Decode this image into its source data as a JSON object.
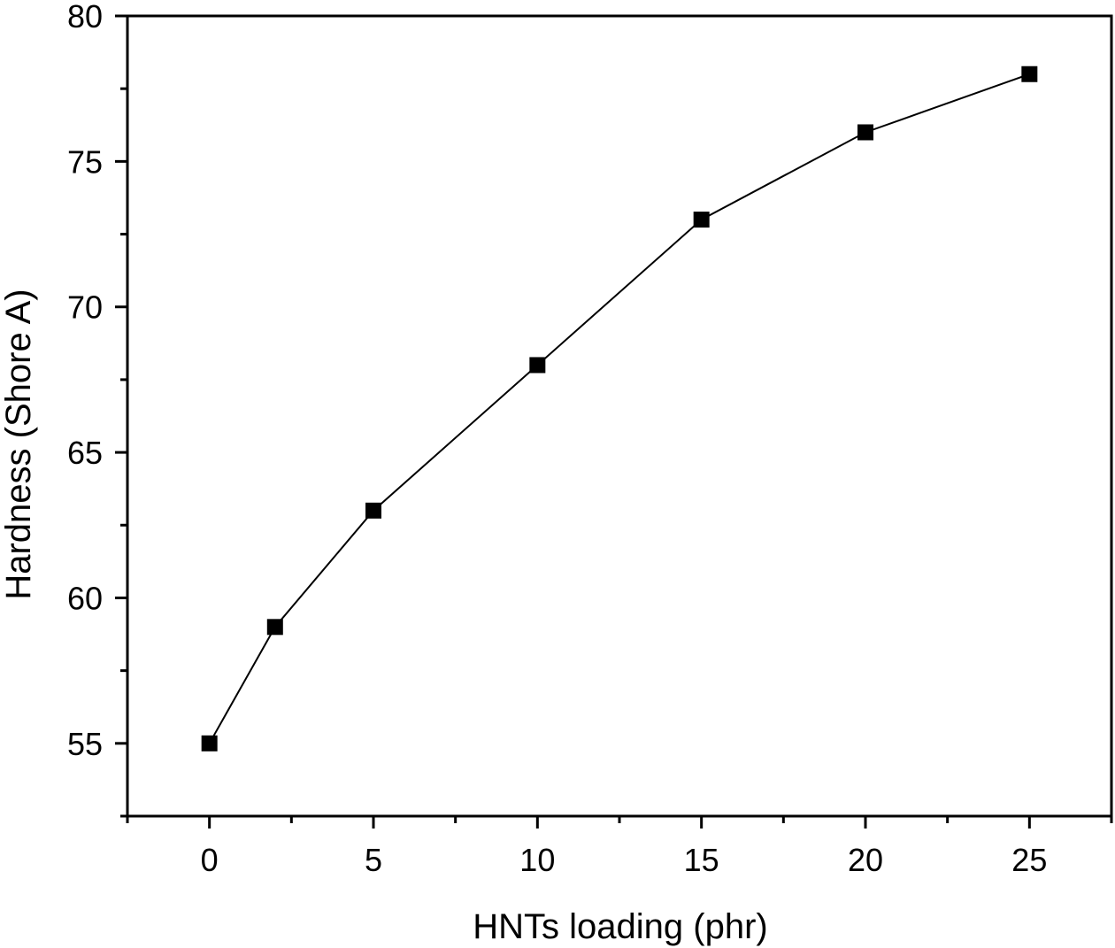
{
  "chart_data": {
    "type": "line",
    "title": "",
    "xlabel": "HNTs loading (phr)",
    "ylabel": "Hardness (Shore A)",
    "xlim": [
      -2.5,
      27.5
    ],
    "ylim": [
      52.5,
      80
    ],
    "x_ticks": [
      0,
      5,
      10,
      15,
      20,
      25
    ],
    "y_ticks": [
      55,
      60,
      65,
      70,
      75,
      80
    ],
    "x_minor_step": 2.5,
    "y_minor_step": 2.5,
    "grid": false,
    "legend": "none",
    "marker": "square",
    "series": [
      {
        "x": [
          0,
          2,
          5,
          10,
          15,
          20,
          25
        ],
        "values": [
          55,
          59,
          63,
          68,
          73,
          76,
          78
        ],
        "color": "#000000"
      }
    ]
  }
}
